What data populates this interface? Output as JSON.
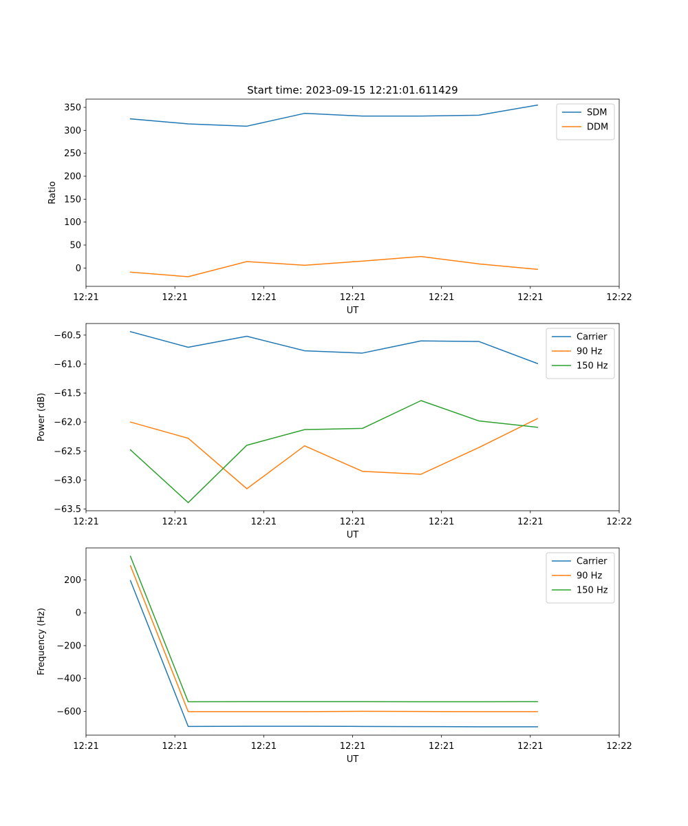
{
  "figure": {
    "title": "Start time: 2023-09-15 12:21:01.611429"
  },
  "colors": {
    "c0": "#1f77b4",
    "c1": "#ff7f0e",
    "c2": "#2ca02c"
  },
  "chart_data": [
    {
      "type": "line",
      "id": "ratio",
      "xlabel": "UT",
      "ylabel": "Ratio",
      "x": [
        0.5,
        1.15,
        1.81,
        2.46,
        3.11,
        3.77,
        4.42,
        5.08
      ],
      "xlim": [
        0,
        6
      ],
      "xticks": [
        0,
        1,
        2,
        3,
        4,
        5,
        6
      ],
      "xticklabels": [
        "12:21",
        "12:21",
        "12:21",
        "12:21",
        "12:21",
        "12:21",
        "12:22"
      ],
      "ylim": [
        -40,
        368
      ],
      "yticks": [
        0,
        50,
        100,
        150,
        200,
        250,
        300,
        350
      ],
      "yticklabels": [
        "0",
        "50",
        "100",
        "150",
        "200",
        "250",
        "300",
        "350"
      ],
      "legend": "top-right",
      "series": [
        {
          "name": "SDM",
          "color": "#1f77b4",
          "values": [
            325,
            314,
            309,
            337,
            331,
            331,
            333,
            355
          ]
        },
        {
          "name": "DDM",
          "color": "#ff7f0e",
          "values": [
            -9,
            -19,
            14,
            6,
            15,
            25,
            9,
            -3
          ]
        }
      ]
    },
    {
      "type": "line",
      "id": "power",
      "xlabel": "UT",
      "ylabel": "Power (dB)",
      "x": [
        0.5,
        1.15,
        1.81,
        2.46,
        3.11,
        3.77,
        4.42,
        5.08
      ],
      "xlim": [
        0,
        6
      ],
      "xticks": [
        0,
        1,
        2,
        3,
        4,
        5,
        6
      ],
      "xticklabels": [
        "12:21",
        "12:21",
        "12:21",
        "12:21",
        "12:21",
        "12:21",
        "12:22"
      ],
      "ylim": [
        -63.53,
        -60.3
      ],
      "yticks": [
        -63.5,
        -63.0,
        -62.5,
        -62.0,
        -61.5,
        -61.0,
        -60.5
      ],
      "yticklabels": [
        "−63.5",
        "−63.0",
        "−62.5",
        "−62.0",
        "−61.5",
        "−61.0",
        "−60.5"
      ],
      "legend": "top-right",
      "series": [
        {
          "name": "Carrier",
          "color": "#1f77b4",
          "values": [
            -60.44,
            -60.71,
            -60.52,
            -60.77,
            -60.81,
            -60.6,
            -60.61,
            -60.99
          ]
        },
        {
          "name": "90 Hz",
          "color": "#ff7f0e",
          "values": [
            -62.0,
            -62.28,
            -63.15,
            -62.41,
            -62.85,
            -62.9,
            -62.44,
            -61.94
          ]
        },
        {
          "name": "150 Hz",
          "color": "#2ca02c",
          "values": [
            -62.48,
            -63.39,
            -62.4,
            -62.13,
            -62.11,
            -61.63,
            -61.98,
            -62.09
          ]
        }
      ]
    },
    {
      "type": "line",
      "id": "frequency",
      "xlabel": "UT",
      "ylabel": "Frequency (Hz)",
      "x": [
        0.5,
        1.15,
        1.81,
        2.46,
        3.11,
        3.77,
        4.42,
        5.08
      ],
      "xlim": [
        0,
        6
      ],
      "xticks": [
        0,
        1,
        2,
        3,
        4,
        5,
        6
      ],
      "xticklabels": [
        "12:21",
        "12:21",
        "12:21",
        "12:21",
        "12:21",
        "12:21",
        "12:22"
      ],
      "ylim": [
        -745,
        395
      ],
      "yticks": [
        -600,
        -400,
        -200,
        0,
        200
      ],
      "yticklabels": [
        "−600",
        "−400",
        "−200",
        "0",
        "200"
      ],
      "legend": "top-right",
      "series": [
        {
          "name": "Carrier",
          "color": "#1f77b4",
          "values": [
            196,
            -692,
            -691,
            -691,
            -692,
            -693,
            -694,
            -694
          ]
        },
        {
          "name": "90 Hz",
          "color": "#ff7f0e",
          "values": [
            287,
            -602,
            -602,
            -602,
            -600,
            -601,
            -602,
            -602
          ]
        },
        {
          "name": "150 Hz",
          "color": "#2ca02c",
          "values": [
            344,
            -542,
            -541,
            -541,
            -541,
            -542,
            -542,
            -541
          ]
        }
      ]
    }
  ]
}
